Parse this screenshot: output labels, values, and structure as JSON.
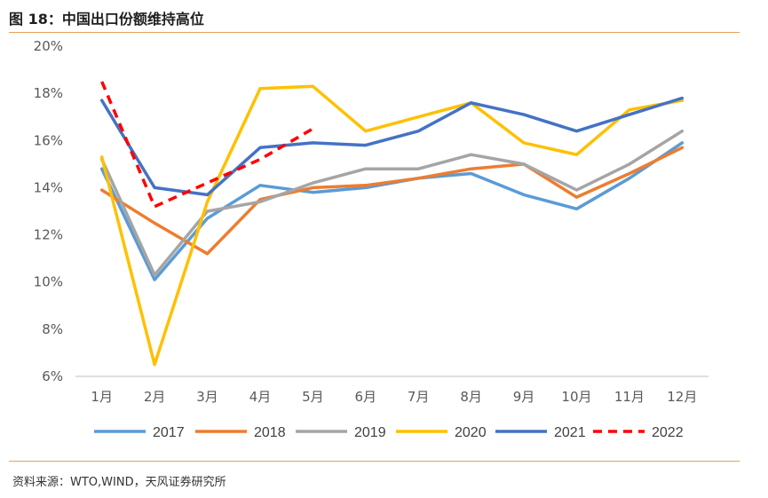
{
  "header": {
    "title": "图 18：中国出口份额维持高位"
  },
  "footer": {
    "source": "资料来源：WTO,WIND，天风证券研究所"
  },
  "chart_data": {
    "type": "line",
    "title": "",
    "xlabel": "",
    "ylabel": "",
    "categories": [
      "1月",
      "2月",
      "3月",
      "4月",
      "5月",
      "6月",
      "7月",
      "8月",
      "9月",
      "10月",
      "11月",
      "12月"
    ],
    "ylim": [
      6,
      20
    ],
    "yticks": [
      6,
      8,
      10,
      12,
      14,
      16,
      18,
      20
    ],
    "ytick_labels": [
      "6%",
      "8%",
      "10%",
      "12%",
      "14%",
      "16%",
      "18%",
      "20%"
    ],
    "grid": false,
    "legend_position": "bottom",
    "series": [
      {
        "name": "2017",
        "color": "#5b9bd5",
        "dashed": false,
        "values": [
          14.8,
          10.1,
          12.7,
          14.1,
          13.8,
          14.0,
          14.4,
          14.6,
          13.7,
          13.1,
          14.4,
          15.9
        ]
      },
      {
        "name": "2018",
        "color": "#ed7d31",
        "dashed": false,
        "values": [
          13.9,
          12.5,
          11.2,
          13.5,
          14.0,
          14.1,
          14.4,
          14.8,
          15.0,
          13.6,
          14.6,
          15.7
        ]
      },
      {
        "name": "2019",
        "color": "#a5a5a5",
        "dashed": false,
        "values": [
          15.2,
          10.3,
          13.0,
          13.4,
          14.2,
          14.8,
          14.8,
          15.4,
          15.0,
          13.9,
          15.0,
          16.4
        ]
      },
      {
        "name": "2020",
        "color": "#ffc000",
        "dashed": false,
        "values": [
          15.3,
          6.5,
          13.4,
          18.2,
          18.3,
          16.4,
          17.0,
          17.6,
          15.9,
          15.4,
          17.3,
          17.7
        ]
      },
      {
        "name": "2021",
        "color": "#4472c4",
        "dashed": false,
        "values": [
          17.7,
          14.0,
          13.7,
          15.7,
          15.9,
          15.8,
          16.4,
          17.6,
          17.1,
          16.4,
          17.1,
          17.8
        ]
      },
      {
        "name": "2022",
        "color": "#ff0000",
        "dashed": true,
        "values": [
          18.5,
          13.2,
          14.2,
          15.2,
          16.5,
          null,
          null,
          null,
          null,
          null,
          null,
          null
        ]
      }
    ]
  }
}
